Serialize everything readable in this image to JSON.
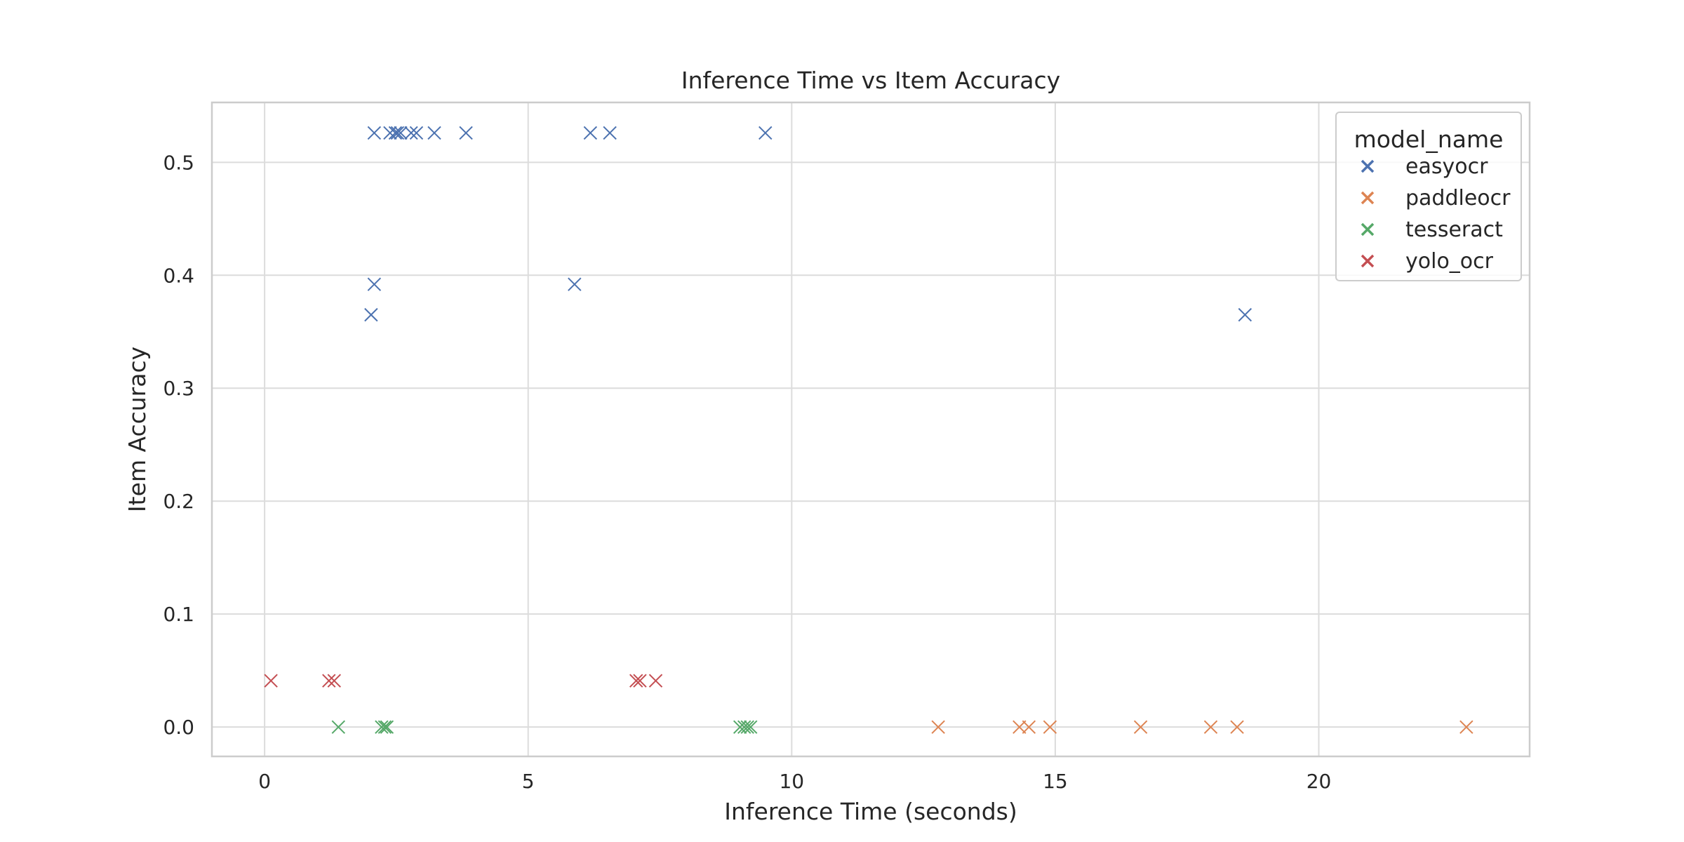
{
  "chart_data": {
    "type": "scatter",
    "title": "Inference Time vs Item Accuracy",
    "xlabel": "Inference Time (seconds)",
    "ylabel": "Item Accuracy",
    "xlim": [
      -1.0,
      24.0
    ],
    "ylim": [
      -0.026,
      0.553
    ],
    "x_ticks": [
      0,
      5,
      10,
      15,
      20
    ],
    "y_ticks": [
      0.0,
      0.1,
      0.2,
      0.3,
      0.4,
      0.5
    ],
    "x_tick_labels": [
      "0",
      "5",
      "10",
      "15",
      "20"
    ],
    "y_tick_labels": [
      "0.0",
      "0.1",
      "0.2",
      "0.3",
      "0.4",
      "0.5"
    ],
    "grid": true,
    "marker": "x",
    "legend": {
      "title": "model_name",
      "position": "top-right"
    },
    "series": [
      {
        "name": "easyocr",
        "color": "#4c72b0",
        "points": [
          [
            2.08,
            0.526
          ],
          [
            2.38,
            0.526
          ],
          [
            2.48,
            0.526
          ],
          [
            2.52,
            0.526
          ],
          [
            2.58,
            0.526
          ],
          [
            2.78,
            0.526
          ],
          [
            2.88,
            0.526
          ],
          [
            3.22,
            0.526
          ],
          [
            3.82,
            0.526
          ],
          [
            6.18,
            0.526
          ],
          [
            6.55,
            0.526
          ],
          [
            9.5,
            0.526
          ],
          [
            2.08,
            0.392
          ],
          [
            5.88,
            0.392
          ],
          [
            2.02,
            0.365
          ],
          [
            18.6,
            0.365
          ]
        ]
      },
      {
        "name": "paddleocr",
        "color": "#dd8452",
        "points": [
          [
            12.78,
            0.0
          ],
          [
            14.32,
            0.0
          ],
          [
            14.5,
            0.0
          ],
          [
            14.9,
            0.0
          ],
          [
            16.62,
            0.0
          ],
          [
            17.95,
            0.0
          ],
          [
            18.45,
            0.0
          ],
          [
            22.8,
            0.0
          ]
        ]
      },
      {
        "name": "tesseract",
        "color": "#55a868",
        "points": [
          [
            1.4,
            0.0
          ],
          [
            2.22,
            0.0
          ],
          [
            2.28,
            0.0
          ],
          [
            2.32,
            0.0
          ],
          [
            9.02,
            0.0
          ],
          [
            9.1,
            0.0
          ],
          [
            9.16,
            0.0
          ],
          [
            9.22,
            0.0
          ]
        ]
      },
      {
        "name": "yolo_ocr",
        "color": "#c44e52",
        "points": [
          [
            0.12,
            0.041
          ],
          [
            1.22,
            0.041
          ],
          [
            1.32,
            0.041
          ],
          [
            7.05,
            0.041
          ],
          [
            7.12,
            0.041
          ],
          [
            7.42,
            0.041
          ]
        ]
      }
    ]
  }
}
